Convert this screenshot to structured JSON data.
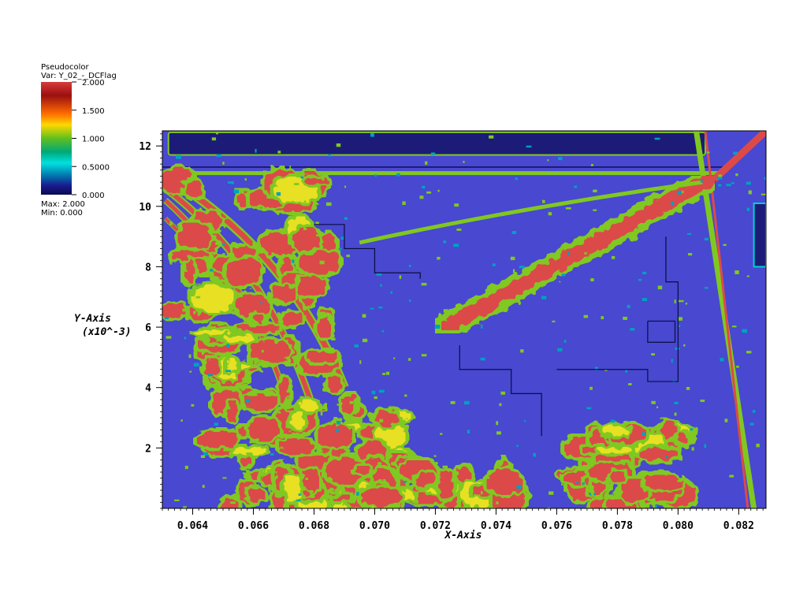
{
  "legend": {
    "plot_type": "Pseudocolor",
    "variable": "Var: Y_02_-_DCFlag",
    "ticks": [
      "2.000",
      "1.500",
      "1.000",
      "0.5000",
      "0.000"
    ],
    "max_label": "Max: 2.000",
    "min_label": "Min: 0.000",
    "colors": [
      "#b22222",
      "#e03030",
      "#ff8c00",
      "#ffd000",
      "#7fd000",
      "#00c060",
      "#00d0d0",
      "#1090c0",
      "#2030a0",
      "#101070"
    ]
  },
  "chart_data": {
    "type": "heatmap",
    "title": "",
    "xlabel": "X-Axis",
    "ylabel": "Y-Axis",
    "ylabel_scale": "(x10^-3)",
    "xlim": [
      0.063,
      0.0829
    ],
    "ylim": [
      0,
      12.5
    ],
    "xticks": [
      0.064,
      0.066,
      0.068,
      0.07,
      0.072,
      0.074,
      0.076,
      0.078,
      0.08,
      0.082
    ],
    "xtick_labels": [
      "0.064",
      "0.066",
      "0.068",
      "0.070",
      "0.072",
      "0.074",
      "0.076",
      "0.078",
      "0.080",
      "0.082"
    ],
    "yticks": [
      2,
      4,
      6,
      8,
      10,
      12
    ],
    "ytick_labels": [
      "2",
      "4",
      "6",
      "8",
      "10",
      "12"
    ],
    "value_range": [
      0,
      2
    ],
    "background_value": 0.3,
    "colors": {
      "background": "#4848d0",
      "low": "#1c1c78",
      "mid": "#80c820",
      "mid_high": "#e8e020",
      "high": "#dc4a48"
    },
    "regions": [
      {
        "label": "lower-left burst",
        "x": [
          0.0648,
          0.0712
        ],
        "y": [
          0,
          4.6
        ],
        "value": 2.0
      },
      {
        "label": "lower bottom band",
        "x": [
          0.0665,
          0.0748
        ],
        "y": [
          0,
          1.3
        ],
        "value": 2.0
      },
      {
        "label": "lower-right burst",
        "x": [
          0.0767,
          0.0802
        ],
        "y": [
          0,
          2.6
        ],
        "value": 2.0
      },
      {
        "label": "diagonal shear layer",
        "x": [
          0.0718,
          0.0815
        ],
        "y": [
          5.3,
          11.0
        ],
        "value": 2.0
      },
      {
        "label": "upper-left fan",
        "x": [
          0.063,
          0.0685
        ],
        "y": [
          4.5,
          11.2
        ],
        "value": 2.0
      },
      {
        "label": "right shock line",
        "x": [
          0.0803,
          0.0825
        ],
        "y": [
          0,
          12.5
        ],
        "value": 2.0
      }
    ]
  }
}
